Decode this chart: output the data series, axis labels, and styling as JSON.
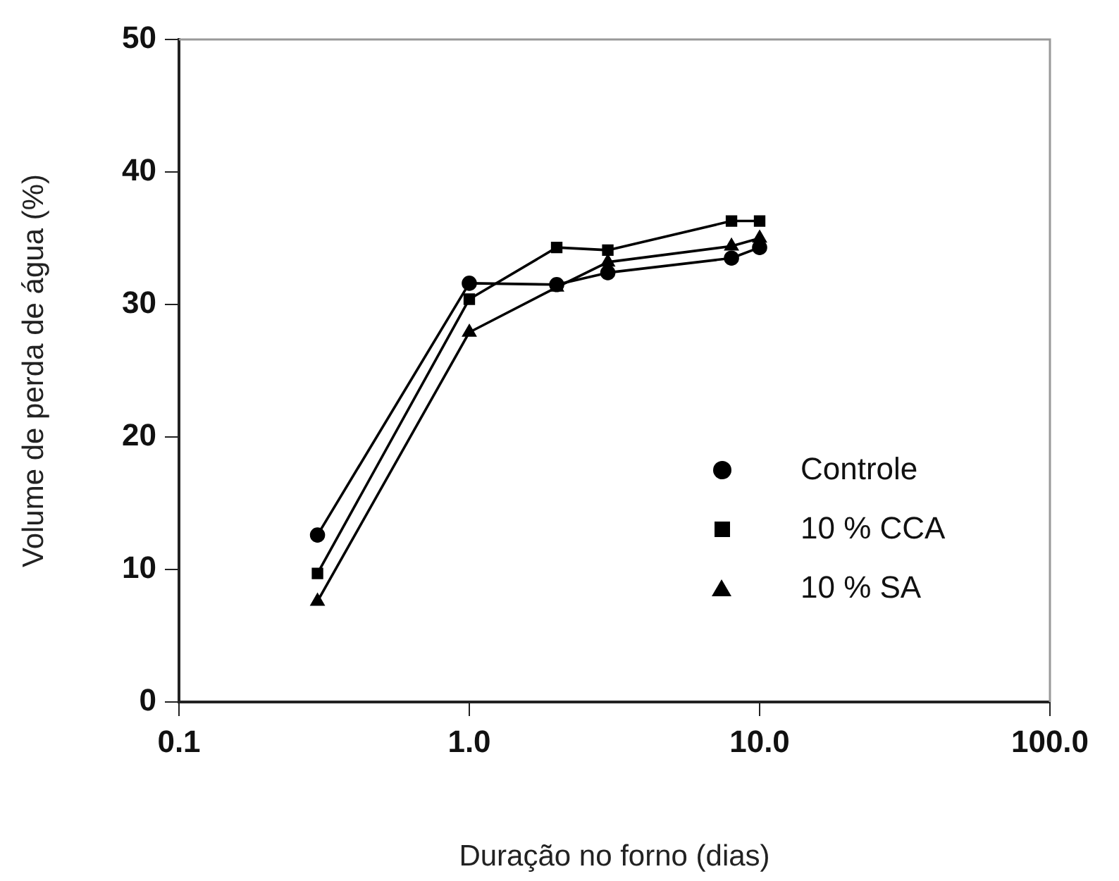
{
  "chart_data": {
    "type": "line",
    "xlabel": "Duração no forno (dias)",
    "ylabel": "Volume de perda de água (%)",
    "log": "x",
    "xlim": [
      0.1,
      100
    ],
    "xticks": [
      0.1,
      {
        "value": 1,
        "label": "1.0"
      },
      {
        "value": 10,
        "label": "10.0"
      },
      {
        "value": 100,
        "label": "100.0"
      }
    ],
    "ylim": [
      0,
      50
    ],
    "yticks": [
      0,
      10,
      20,
      30,
      40,
      50
    ],
    "grid": false,
    "legend": "bottom right",
    "line_style": "solid",
    "series": [
      {
        "name": "Controle",
        "color": "#000000",
        "marker": "circle",
        "x": [
          0.3,
          1,
          2,
          3,
          8,
          10
        ],
        "values": [
          12.6,
          31.6,
          31.5,
          32.4,
          33.5,
          34.3
        ]
      },
      {
        "name": "10 % CCA",
        "color": "#000000",
        "marker": "square",
        "x": [
          0.3,
          1,
          2,
          3,
          8,
          10
        ],
        "values": [
          9.7,
          30.4,
          34.3,
          34.1,
          36.3,
          36.3
        ]
      },
      {
        "name": "10 % SA",
        "color": "#000000",
        "marker": "triangle",
        "x": [
          0.3,
          1,
          2,
          3,
          8,
          10
        ],
        "values": [
          7.6,
          27.9,
          31.3,
          33.2,
          34.4,
          35.0
        ]
      }
    ]
  }
}
